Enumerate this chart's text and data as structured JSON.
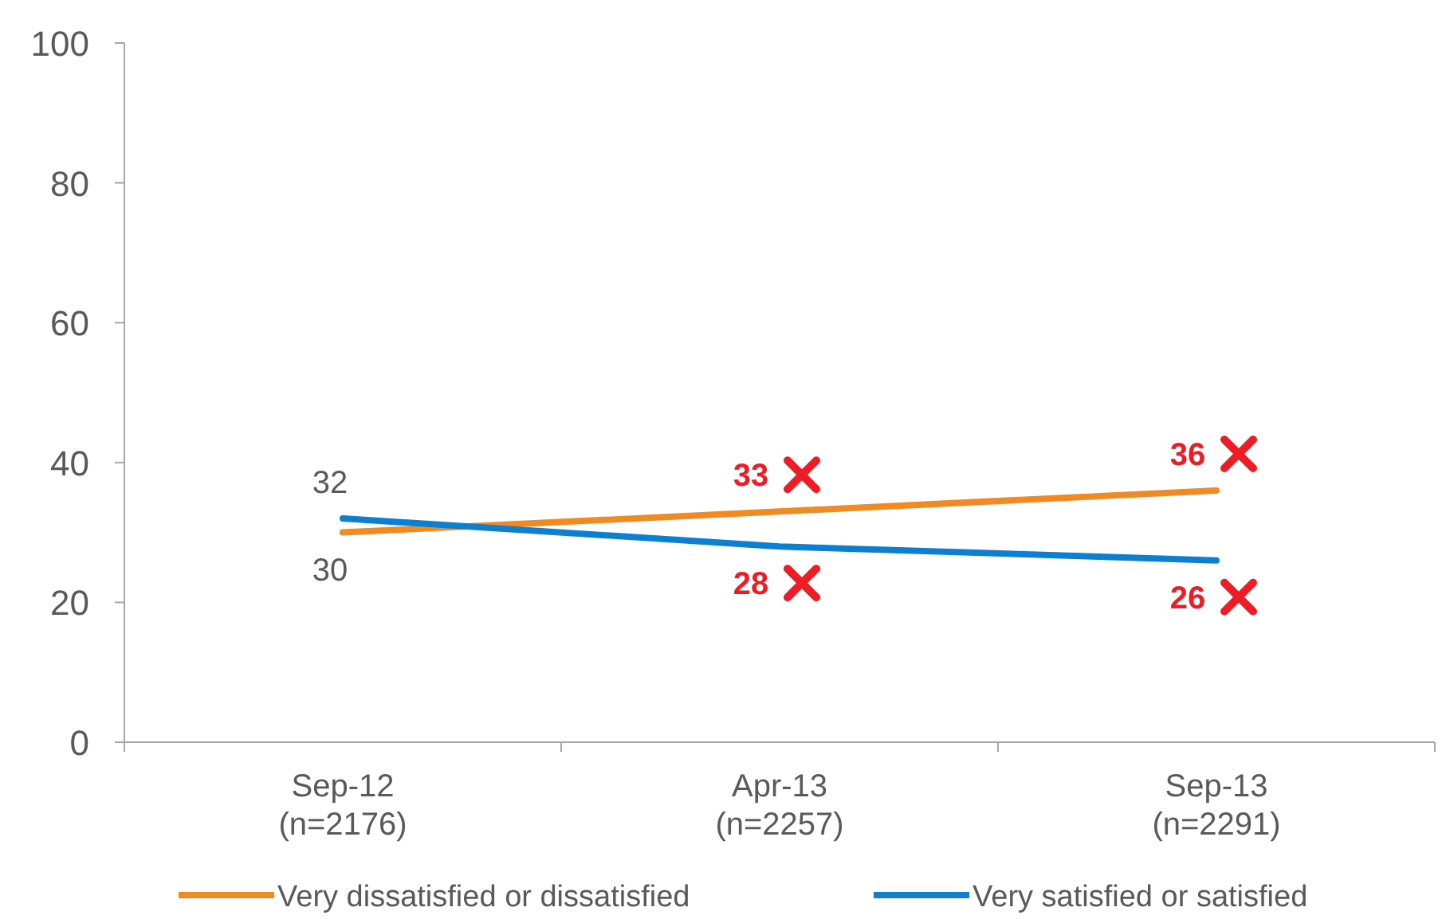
{
  "chart_data": {
    "type": "line",
    "categories": [
      "Sep-12\n(n=2176)",
      "Apr-13\n(n=2257)",
      "Sep-13\n(n=2291)"
    ],
    "series": [
      {
        "name": "Very dissatisfied or dissatisfied",
        "color": "#f08a24",
        "values": [
          30,
          33,
          36
        ],
        "value_labels": [
          "30",
          "33",
          "36"
        ]
      },
      {
        "name": "Very satisfied or satisfied",
        "color": "#0d7fd0",
        "values": [
          32,
          28,
          26
        ],
        "value_labels": [
          "32",
          "28",
          "26"
        ]
      }
    ],
    "ylim": [
      0,
      100
    ],
    "yticks": [
      0,
      20,
      40,
      60,
      80,
      100
    ],
    "grid": false,
    "legend": "bottom",
    "marker": "none",
    "line_style": "solid"
  }
}
